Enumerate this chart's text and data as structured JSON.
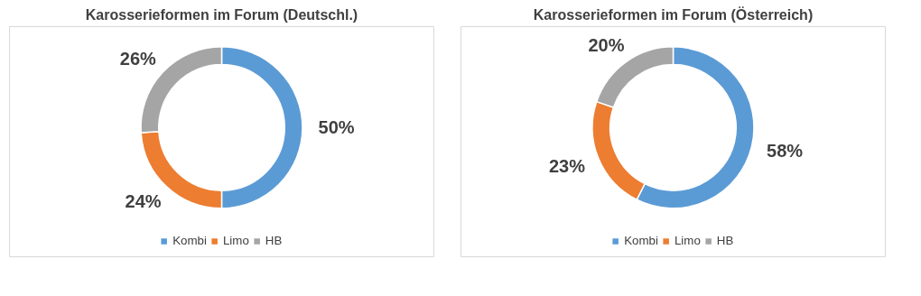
{
  "chart_data": [
    {
      "type": "donut",
      "title": "Karosserieformen im Forum (Deutschl.)",
      "categories": [
        "Kombi",
        "Limo",
        "HB"
      ],
      "values": [
        50,
        24,
        26
      ],
      "colors": [
        "#5b9bd5",
        "#ed7d31",
        "#a5a5a5"
      ],
      "value_labels": [
        "50%",
        "24%",
        "26%"
      ],
      "legend": "bottom"
    },
    {
      "type": "donut",
      "title": "Karosserieformen im Forum (Österreich)",
      "categories": [
        "Kombi",
        "Limo",
        "HB"
      ],
      "values": [
        58,
        23,
        20
      ],
      "colors": [
        "#5b9bd5",
        "#ed7d31",
        "#a5a5a5"
      ],
      "value_labels": [
        "58%",
        "23%",
        "20%"
      ],
      "legend": "bottom"
    }
  ]
}
